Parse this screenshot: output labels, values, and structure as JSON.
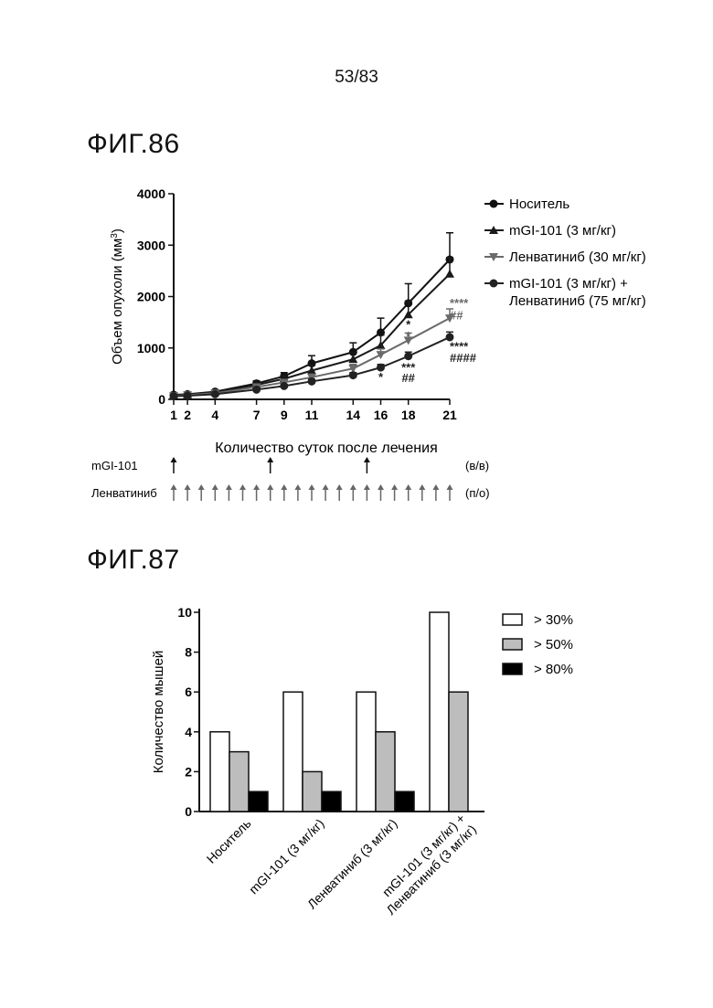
{
  "page_number": "53/83",
  "figures": [
    {
      "title": "ФИГ.86"
    },
    {
      "title": "ФИГ.87"
    }
  ],
  "colors": {
    "vehicle": "#111111",
    "mgi": "#1a1a1a",
    "lenvatinib": "#6a6a6a",
    "combo": "#222222",
    "bar_gt30": "#ffffff",
    "bar_gt50": "#bdbdbd",
    "bar_gt80": "#000000"
  },
  "chart_data": [
    {
      "type": "line",
      "title": "",
      "xlabel": "Количество суток после лечения",
      "ylabel": "Объем опухоли (мм³)",
      "ylabel_main": "Объем опухоли (мм",
      "ylabel_sup": "3",
      "ylabel_tail": ")",
      "xlim": [
        1,
        21
      ],
      "ylim": [
        0,
        4000
      ],
      "x_ticks": [
        1,
        2,
        4,
        7,
        9,
        11,
        14,
        16,
        18,
        21
      ],
      "y_ticks": [
        0,
        1000,
        2000,
        3000,
        4000
      ],
      "legend_position": "right",
      "series": [
        {
          "name": "Носитель",
          "marker": "circle",
          "x": [
            1,
            2,
            4,
            7,
            9,
            11,
            14,
            16,
            18,
            21
          ],
          "y": [
            90,
            100,
            150,
            310,
            450,
            700,
            920,
            1300,
            1870,
            2720
          ],
          "err": [
            20,
            20,
            30,
            50,
            70,
            150,
            180,
            280,
            380,
            520
          ]
        },
        {
          "name": "mGI-101 (3 мг/кг)",
          "marker": "triangle-up",
          "x": [
            1,
            2,
            4,
            7,
            9,
            11,
            14,
            16,
            18,
            21
          ],
          "y": [
            80,
            95,
            140,
            280,
            400,
            560,
            780,
            1050,
            1650,
            2440
          ],
          "err": [
            15,
            20,
            25,
            40,
            60,
            100,
            130,
            200,
            260,
            320
          ]
        },
        {
          "name": "Ленватиниб (30 мг/кг)",
          "marker": "triangle-down",
          "x": [
            1,
            2,
            4,
            7,
            9,
            11,
            14,
            16,
            18,
            21
          ],
          "y": [
            70,
            85,
            120,
            240,
            330,
            430,
            600,
            870,
            1150,
            1580
          ],
          "err": [
            15,
            15,
            20,
            30,
            40,
            60,
            80,
            110,
            140,
            180
          ]
        },
        {
          "name": "mGI-101 (3 мг/кг) + Ленватиниб (75 мг/кг)",
          "name_lines": [
            "mGI-101 (3 мг/кг) +",
            "Ленватиниб (75 мг/кг)"
          ],
          "marker": "circle",
          "x": [
            1,
            2,
            4,
            7,
            9,
            11,
            14,
            16,
            18,
            21
          ],
          "y": [
            60,
            70,
            100,
            190,
            260,
            350,
            470,
            620,
            840,
            1210
          ],
          "err": [
            10,
            10,
            15,
            20,
            30,
            40,
            50,
            60,
            80,
            100
          ]
        }
      ],
      "annotations": [
        {
          "text": "****",
          "x": 21,
          "y": 1800,
          "color": "lenvatinib"
        },
        {
          "text": "##",
          "x": 21,
          "y": 1560,
          "color": "lenvatinib"
        },
        {
          "text": "****",
          "x": 21,
          "y": 950,
          "color": "combo"
        },
        {
          "text": "####",
          "x": 21,
          "y": 730,
          "color": "combo"
        },
        {
          "text": "*",
          "x": 18,
          "y": 1380,
          "color": "mgi"
        },
        {
          "text": "*",
          "x": 18,
          "y": 1160,
          "color": "lenvatinib"
        },
        {
          "text": "***",
          "x": 18,
          "y": 540,
          "color": "combo"
        },
        {
          "text": "##",
          "x": 18,
          "y": 340,
          "color": "combo"
        },
        {
          "text": "*",
          "x": 16,
          "y": 360,
          "color": "combo"
        }
      ],
      "dosing": [
        {
          "label": "mGI-101",
          "route": "(в/в)",
          "days": [
            1,
            8,
            15
          ]
        },
        {
          "label": "Ленватиниб",
          "route": "(п/о)",
          "days": [
            1,
            2,
            3,
            4,
            5,
            6,
            7,
            8,
            9,
            10,
            11,
            12,
            13,
            14,
            15,
            16,
            17,
            18,
            19,
            20,
            21
          ]
        }
      ]
    },
    {
      "type": "bar",
      "title": "",
      "ylabel": "Количество мышей",
      "xlabel": "",
      "ylim": [
        0,
        10
      ],
      "y_ticks": [
        0,
        2,
        4,
        6,
        8,
        10
      ],
      "legend_position": "top-right",
      "categories": [
        "Носитель",
        "mGI-101 (3 мг/кг)",
        "Ленватиниб (3 мг/кг)",
        "mGI-101 (3 мг/кг) + Ленватиниб (3 мг/кг)"
      ],
      "category_lines": [
        [
          "Носитель"
        ],
        [
          "mGI-101 (3 мг/кг)"
        ],
        [
          "Ленватиниб (3 мг/кг)"
        ],
        [
          "mGI-101 (3 мг/кг) +",
          "Ленватиниб (3 мг/кг)"
        ]
      ],
      "series": [
        {
          "name": "> 30%",
          "values": [
            4,
            6,
            6,
            10
          ],
          "color": "bar_gt30"
        },
        {
          "name": "> 50%",
          "values": [
            3,
            2,
            4,
            6
          ],
          "color": "bar_gt50"
        },
        {
          "name": "> 80%",
          "values": [
            1,
            1,
            1,
            0
          ],
          "color": "bar_gt80"
        }
      ]
    }
  ]
}
